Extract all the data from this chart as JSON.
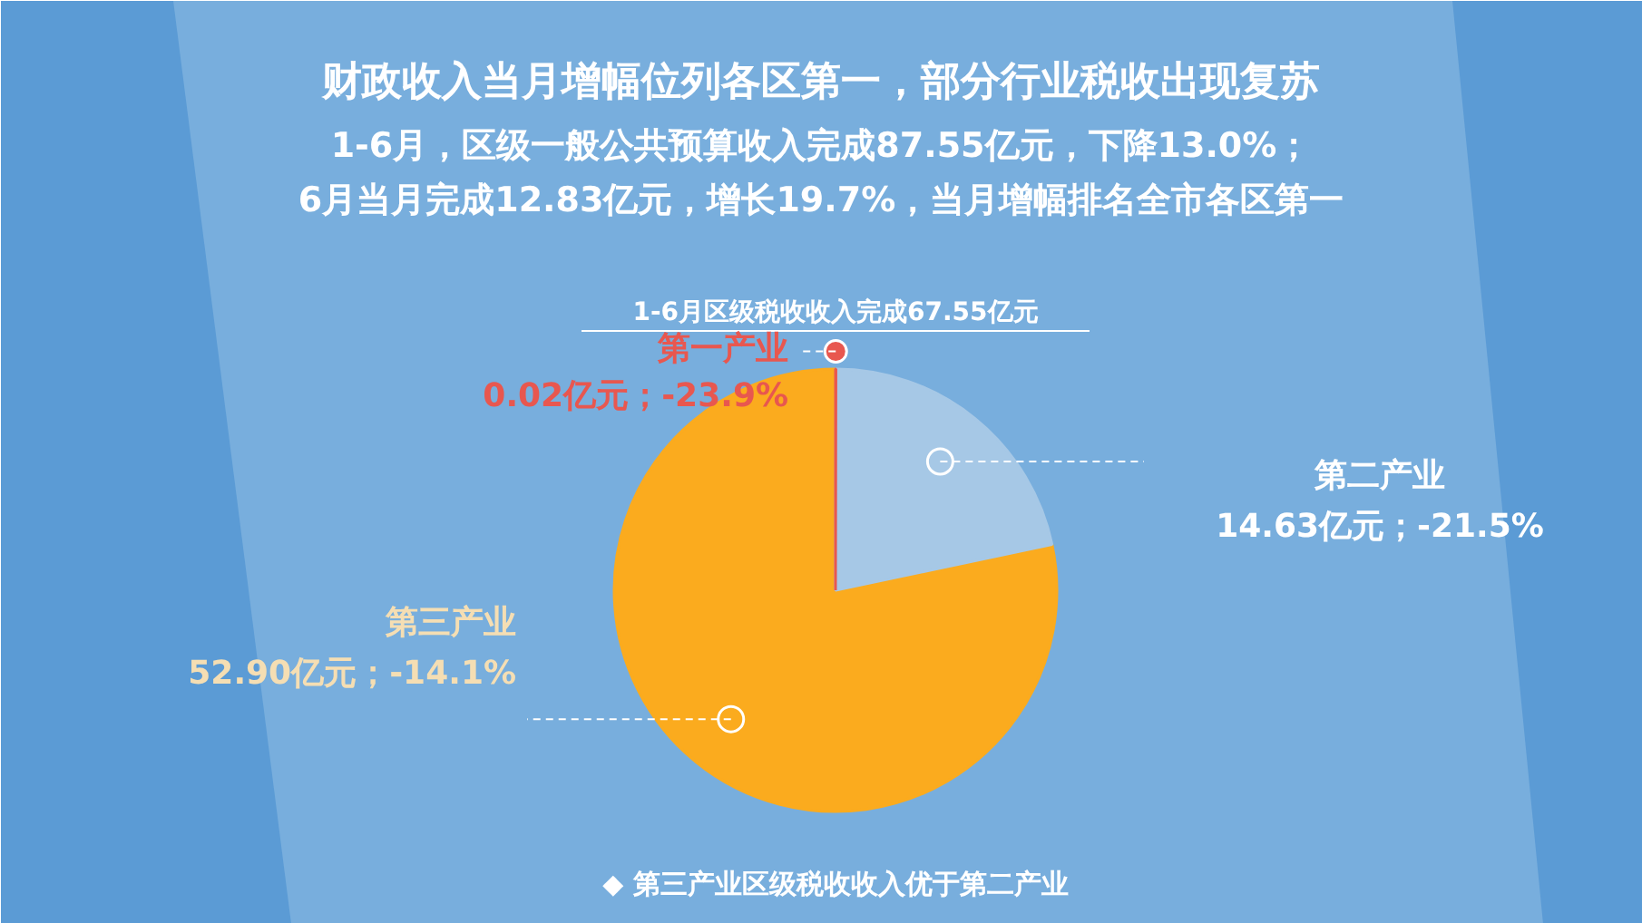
{
  "chart_data": {
    "type": "pie",
    "title": "财政收入当月增幅位列各区第一，部分行业税收出现复苏",
    "subtitle": "1-6月，区级一般公共预算收入完成87.55亿元，下降13.0%；\n6月当月完成12.83亿元，增长19.7%，当月增幅排名全市各区第一",
    "annotations": [
      "1-6月区级税收收入完成67.55亿元",
      "◆ 第三产业区级税收收入优于第二产业"
    ],
    "categories": [
      "第一产业",
      "第二产业",
      "第三产业"
    ],
    "values": [
      0.02,
      14.63,
      52.9
    ],
    "colors": [
      "#e8574f",
      "#a6c8e6",
      "#fbab1e"
    ],
    "value_labels": [
      "0.02亿元；-23.9%",
      "14.63亿元；-21.5%",
      "52.90亿元；-14.1%"
    ]
  }
}
